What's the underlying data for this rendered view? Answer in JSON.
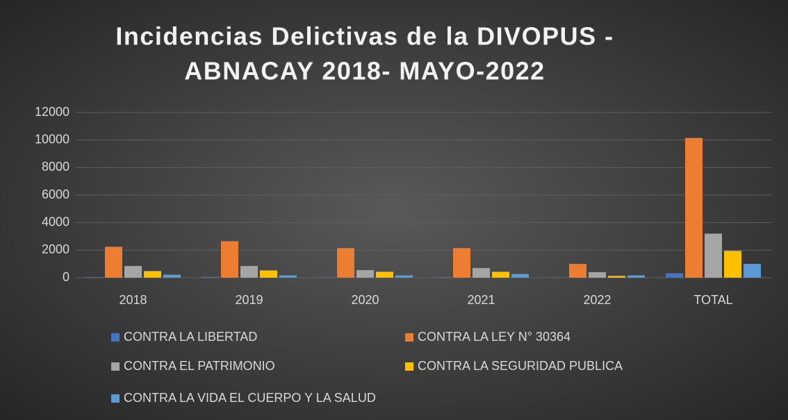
{
  "chart_data": {
    "type": "bar",
    "title": [
      "Incidencias Delictivas de la DIVOPUS -",
      "ABNACAY 2018- MAYO-2022"
    ],
    "categories": [
      "2018",
      "2019",
      "2020",
      "2021",
      "2022",
      "TOTAL"
    ],
    "series": [
      {
        "name": "CONTRA LA LIBERTAD",
        "color": "#4472c4",
        "values": [
          50,
          60,
          40,
          50,
          30,
          320
        ]
      },
      {
        "name": "CONTRA LA LEY N° 30364",
        "color": "#ed7d31",
        "values": [
          2250,
          2650,
          2150,
          2150,
          1000,
          10150
        ]
      },
      {
        "name": "CONTRA EL PATRIMONIO",
        "color": "#a5a5a5",
        "values": [
          850,
          850,
          550,
          700,
          400,
          3200
        ]
      },
      {
        "name": "CONTRA LA SEGURIDAD PUBLICA",
        "color": "#ffc000",
        "values": [
          480,
          530,
          430,
          430,
          130,
          1950
        ]
      },
      {
        "name": "CONTRA LA VIDA EL CUERPO Y LA SALUD",
        "color": "#5b9bd5",
        "values": [
          220,
          170,
          170,
          270,
          170,
          1000
        ]
      }
    ],
    "ylim": [
      0,
      12000
    ],
    "yticks": [
      0,
      2000,
      4000,
      6000,
      8000,
      10000,
      12000
    ],
    "grid": true,
    "legend": "bottom"
  }
}
